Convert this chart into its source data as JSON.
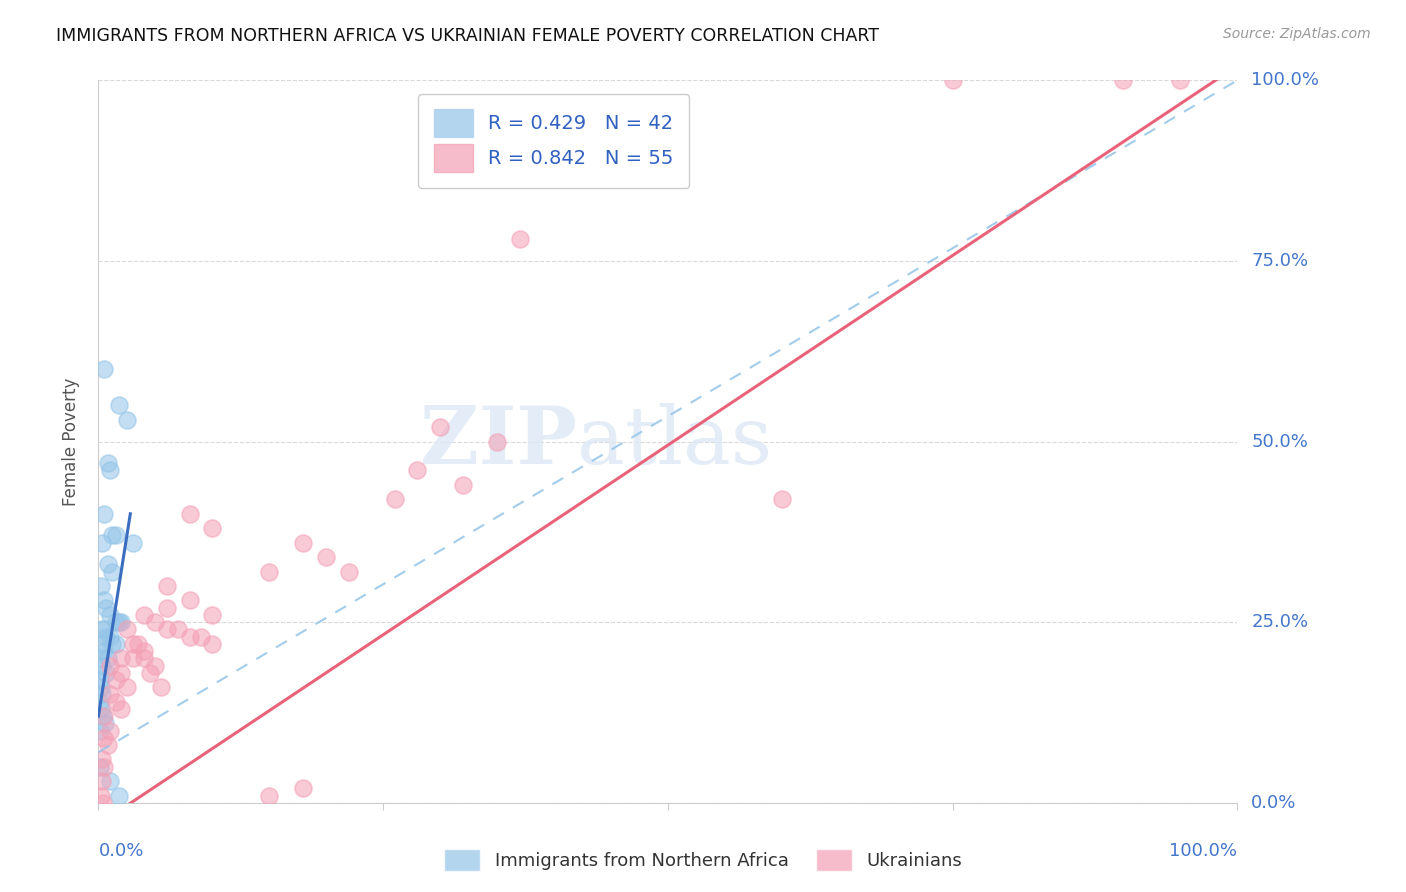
{
  "title": "IMMIGRANTS FROM NORTHERN AFRICA VS UKRAINIAN FEMALE POVERTY CORRELATION CHART",
  "source": "Source: ZipAtlas.com",
  "ylabel": "Female Poverty",
  "ytick_labels": [
    "0.0%",
    "25.0%",
    "50.0%",
    "75.0%",
    "100.0%"
  ],
  "ytick_values": [
    0.0,
    0.25,
    0.5,
    0.75,
    1.0
  ],
  "xtick_labels": [
    "0.0%",
    "100.0%"
  ],
  "xtick_values": [
    0.0,
    1.0
  ],
  "legend_blue_r": "R = 0.429",
  "legend_blue_n": "N = 42",
  "legend_pink_r": "R = 0.842",
  "legend_pink_n": "N = 55",
  "blue_color": "#93c4e8",
  "pink_color": "#f4a0b5",
  "blue_line_color": "#3a6cbf",
  "pink_line_color": "#e8637a",
  "blue_scatter": [
    [
      0.005,
      0.6
    ],
    [
      0.018,
      0.55
    ],
    [
      0.025,
      0.53
    ],
    [
      0.008,
      0.47
    ],
    [
      0.01,
      0.46
    ],
    [
      0.005,
      0.4
    ],
    [
      0.012,
      0.37
    ],
    [
      0.015,
      0.37
    ],
    [
      0.03,
      0.36
    ],
    [
      0.003,
      0.36
    ],
    [
      0.008,
      0.33
    ],
    [
      0.012,
      0.32
    ],
    [
      0.002,
      0.3
    ],
    [
      0.005,
      0.28
    ],
    [
      0.007,
      0.27
    ],
    [
      0.01,
      0.26
    ],
    [
      0.015,
      0.25
    ],
    [
      0.018,
      0.25
    ],
    [
      0.02,
      0.25
    ],
    [
      0.003,
      0.24
    ],
    [
      0.005,
      0.24
    ],
    [
      0.007,
      0.23
    ],
    [
      0.01,
      0.23
    ],
    [
      0.012,
      0.22
    ],
    [
      0.015,
      0.22
    ],
    [
      0.002,
      0.22
    ],
    [
      0.005,
      0.21
    ],
    [
      0.008,
      0.2
    ],
    [
      0.001,
      0.2
    ],
    [
      0.003,
      0.19
    ],
    [
      0.007,
      0.18
    ],
    [
      0.001,
      0.17
    ],
    [
      0.002,
      0.16
    ],
    [
      0.003,
      0.15
    ],
    [
      0.001,
      0.14
    ],
    [
      0.002,
      0.13
    ],
    [
      0.004,
      0.12
    ],
    [
      0.006,
      0.11
    ],
    [
      0.001,
      0.1
    ],
    [
      0.001,
      0.05
    ],
    [
      0.01,
      0.03
    ],
    [
      0.018,
      0.01
    ]
  ],
  "pink_scatter": [
    [
      0.75,
      1.0
    ],
    [
      0.9,
      1.0
    ],
    [
      0.95,
      1.0
    ],
    [
      0.37,
      0.78
    ],
    [
      0.3,
      0.52
    ],
    [
      0.35,
      0.5
    ],
    [
      0.28,
      0.46
    ],
    [
      0.32,
      0.44
    ],
    [
      0.26,
      0.42
    ],
    [
      0.6,
      0.42
    ],
    [
      0.08,
      0.4
    ],
    [
      0.1,
      0.38
    ],
    [
      0.18,
      0.36
    ],
    [
      0.2,
      0.34
    ],
    [
      0.15,
      0.32
    ],
    [
      0.22,
      0.32
    ],
    [
      0.06,
      0.3
    ],
    [
      0.08,
      0.28
    ],
    [
      0.06,
      0.27
    ],
    [
      0.1,
      0.26
    ],
    [
      0.04,
      0.26
    ],
    [
      0.05,
      0.25
    ],
    [
      0.06,
      0.24
    ],
    [
      0.07,
      0.24
    ],
    [
      0.08,
      0.23
    ],
    [
      0.09,
      0.23
    ],
    [
      0.1,
      0.22
    ],
    [
      0.03,
      0.22
    ],
    [
      0.04,
      0.21
    ],
    [
      0.02,
      0.2
    ],
    [
      0.03,
      0.2
    ],
    [
      0.05,
      0.19
    ],
    [
      0.01,
      0.19
    ],
    [
      0.02,
      0.18
    ],
    [
      0.015,
      0.17
    ],
    [
      0.025,
      0.16
    ],
    [
      0.01,
      0.15
    ],
    [
      0.015,
      0.14
    ],
    [
      0.02,
      0.13
    ],
    [
      0.005,
      0.12
    ],
    [
      0.01,
      0.1
    ],
    [
      0.005,
      0.09
    ],
    [
      0.008,
      0.08
    ],
    [
      0.003,
      0.06
    ],
    [
      0.005,
      0.05
    ],
    [
      0.003,
      0.03
    ],
    [
      0.18,
      0.02
    ],
    [
      0.15,
      0.01
    ],
    [
      0.002,
      0.01
    ],
    [
      0.004,
      0.0
    ],
    [
      0.04,
      0.2
    ],
    [
      0.035,
      0.22
    ],
    [
      0.025,
      0.24
    ],
    [
      0.045,
      0.18
    ],
    [
      0.055,
      0.16
    ]
  ],
  "watermark_zip": "ZIP",
  "watermark_atlas": "atlas",
  "background_color": "#ffffff",
  "grid_color": "#d0d0d0"
}
